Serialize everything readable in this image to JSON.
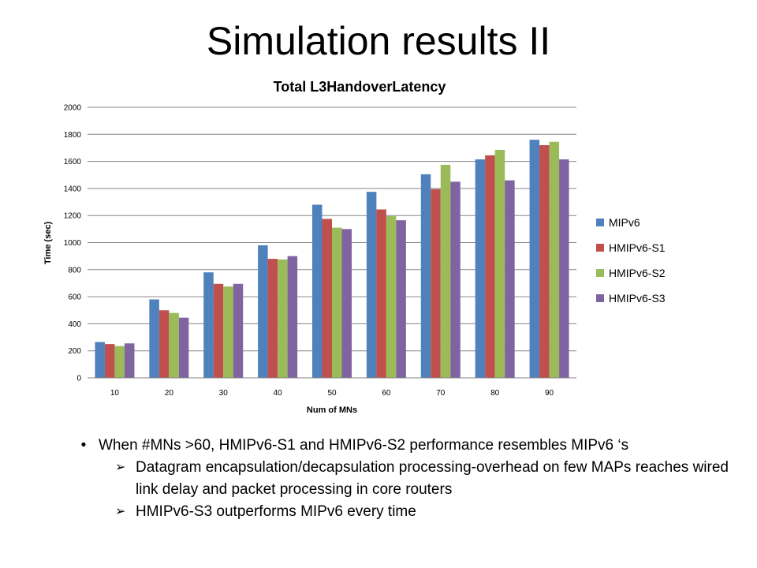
{
  "slide": {
    "title": "Simulation results II",
    "bullet": "When #MNs >60, HMIPv6-S1 and HMIPv6-S2 performance resembles MIPv6 ‘s",
    "sub_bullets": [
      "Datagram encapsulation/decapsulation   processing-overhead on few MAPs reaches wired link delay and packet processing in core routers",
      "HMIPv6-S3 outperforms MIPv6 every time"
    ],
    "bullet_icon": "bullet-dot-icon",
    "sub_bullet_icon": "arrow-check-icon"
  },
  "chart_data": {
    "type": "bar",
    "title": "Total L3HandoverLatency",
    "xlabel": "Num of MNs",
    "ylabel": "Time (sec)",
    "categories": [
      "10",
      "20",
      "30",
      "40",
      "50",
      "60",
      "70",
      "80",
      "90"
    ],
    "ylim": [
      0,
      2000
    ],
    "yticks": [
      0,
      200,
      400,
      600,
      800,
      1000,
      1200,
      1400,
      1600,
      1800,
      2000
    ],
    "grid": true,
    "legend_position": "right",
    "series": [
      {
        "name": "MIPv6",
        "color": "#4F81BD",
        "values": [
          265,
          580,
          780,
          980,
          1280,
          1375,
          1505,
          1615,
          1760
        ]
      },
      {
        "name": "HMIPv6-S1",
        "color": "#C0504D",
        "values": [
          250,
          500,
          695,
          880,
          1175,
          1245,
          1395,
          1645,
          1720
        ]
      },
      {
        "name": "HMIPv6-S2",
        "color": "#9BBB59",
        "values": [
          235,
          480,
          675,
          875,
          1110,
          1195,
          1575,
          1685,
          1745
        ]
      },
      {
        "name": "HMIPv6-S3",
        "color": "#8064A2",
        "values": [
          255,
          445,
          695,
          900,
          1100,
          1165,
          1450,
          1460,
          1615
        ]
      }
    ]
  }
}
